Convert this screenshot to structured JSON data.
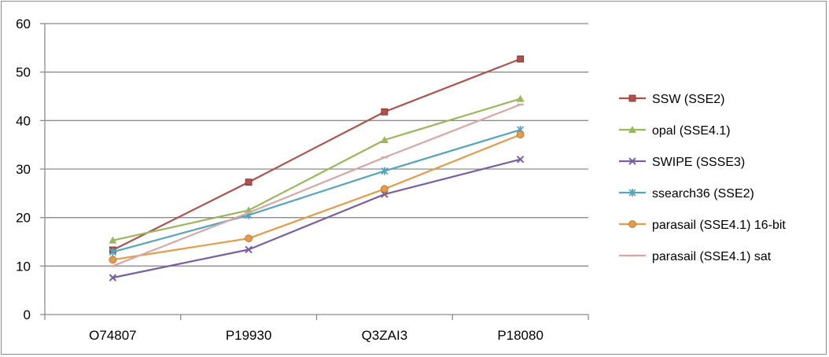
{
  "chart_data": {
    "type": "line",
    "title": "",
    "xlabel": "",
    "ylabel": "",
    "categories": [
      "O74807",
      "P19930",
      "Q3ZAI3",
      "P18080"
    ],
    "ylim": [
      0,
      60
    ],
    "yticks": [
      0,
      10,
      20,
      30,
      40,
      50,
      60
    ],
    "grid": true,
    "legend_position": "right",
    "series": [
      {
        "name": "SSW (SSE2)",
        "color": "#b1514c",
        "marker": "square",
        "values": [
          13.3,
          27.3,
          41.8,
          52.7
        ]
      },
      {
        "name": "opal (SSE4.1)",
        "color": "#98b85a",
        "marker": "triangle",
        "values": [
          15.3,
          21.5,
          36.0,
          44.5
        ]
      },
      {
        "name": "SWIPE (SSSE3)",
        "color": "#7a5fa0",
        "marker": "x",
        "values": [
          7.6,
          13.4,
          24.8,
          32.0
        ]
      },
      {
        "name": "ssearch36 (SSE2)",
        "color": "#55a5bc",
        "marker": "star",
        "values": [
          12.9,
          20.5,
          29.6,
          38.1
        ]
      },
      {
        "name": "parasail (SSE4.1) 16-bit",
        "color": "#e69b48",
        "marker": "circle",
        "values": [
          11.3,
          15.7,
          25.9,
          37.1
        ]
      },
      {
        "name": "parasail (SSE4.1) sat",
        "color": "#d9a7a5",
        "marker": "dash",
        "values": [
          10.0,
          21.0,
          32.4,
          43.3
        ]
      }
    ]
  }
}
